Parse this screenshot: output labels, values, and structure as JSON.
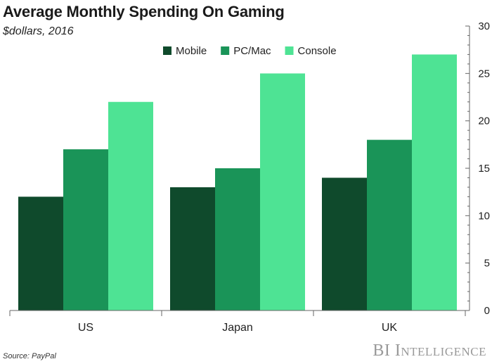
{
  "chart_data": {
    "type": "bar",
    "title": "Average Monthly Spending On Gaming",
    "subtitle": "$dollars, 2016",
    "categories": [
      "US",
      "Japan",
      "UK"
    ],
    "series": [
      {
        "name": "Mobile",
        "color": "#0f4a2c",
        "values": [
          12,
          13,
          14
        ]
      },
      {
        "name": "PC/Mac",
        "color": "#1a9458",
        "values": [
          17,
          15,
          18
        ]
      },
      {
        "name": "Console",
        "color": "#4ee394",
        "values": [
          22,
          25,
          27
        ]
      }
    ],
    "ylim": [
      0,
      30
    ],
    "yticks": [
      0,
      5,
      10,
      15,
      20,
      25,
      30
    ],
    "y_axis_position": "right",
    "legend_position": "top-center",
    "grid": false,
    "source": "Source: PayPal",
    "brand": "BI Intelligence"
  }
}
